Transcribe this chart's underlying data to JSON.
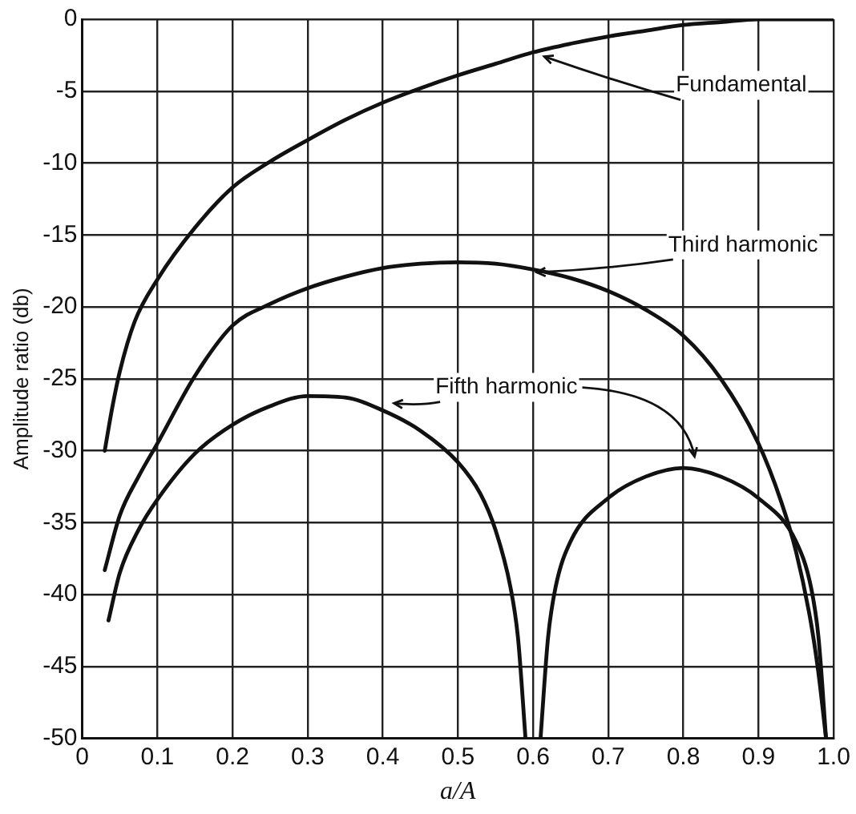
{
  "chart_data": {
    "type": "line",
    "xlabel": "a/A",
    "ylabel": "Amplitude ratio (db)",
    "xlim": [
      0,
      1
    ],
    "xticks": [
      0,
      0.1,
      0.2,
      0.3,
      0.4,
      0.5,
      0.6,
      0.7,
      0.8,
      0.9,
      {
        "value": 1,
        "label": "1.0"
      }
    ],
    "ylim": [
      -50,
      0
    ],
    "yticks": [
      -50,
      -45,
      -40,
      -35,
      -30,
      -25,
      -20,
      -15,
      -10,
      -5,
      0
    ],
    "grid": true,
    "legend": false,
    "marker": "none",
    "line_style": "solid",
    "series": [
      {
        "name": "Fundamental",
        "color": "#111111",
        "x": [
          0.03,
          0.04,
          0.05,
          0.07,
          0.1,
          0.15,
          0.2,
          0.25,
          0.3,
          0.35,
          0.4,
          0.45,
          0.5,
          0.55,
          0.6,
          0.65,
          0.7,
          0.75,
          0.8,
          0.85,
          0.9,
          1.0
        ],
        "values": [
          -30,
          -27,
          -24.5,
          -21,
          -18.1,
          -14.5,
          -11.7,
          -9.9,
          -8.4,
          -7,
          -5.8,
          -4.8,
          -3.9,
          -3.1,
          -2.3,
          -1.7,
          -1.2,
          -0.8,
          -0.4,
          -0.2,
          0,
          0
        ]
      },
      {
        "name": "Third harmonic",
        "color": "#111111",
        "x": [
          0.03,
          0.05,
          0.075,
          0.1,
          0.15,
          0.2,
          0.25,
          0.3,
          0.35,
          0.4,
          0.45,
          0.5,
          0.55,
          0.6,
          0.65,
          0.7,
          0.75,
          0.8,
          0.85,
          0.9,
          0.93,
          0.95,
          0.97,
          0.98,
          0.99
        ],
        "values": [
          -38.3,
          -34.5,
          -31.8,
          -29.5,
          -24.8,
          -21.3,
          -19.8,
          -18.7,
          -17.9,
          -17.3,
          -17,
          -16.9,
          -17,
          -17.4,
          -18,
          -18.9,
          -20.2,
          -22,
          -25,
          -29.5,
          -33.5,
          -37,
          -42,
          -45.5,
          -50
        ]
      },
      {
        "name": "Fifth harmonic",
        "color": "#111111",
        "x": [
          0.035,
          0.05,
          0.075,
          0.1,
          0.15,
          0.2,
          0.25,
          0.3,
          0.35,
          0.4,
          0.45,
          0.5,
          0.53,
          0.55,
          0.57,
          0.58,
          0.59,
          null,
          0.61,
          0.62,
          0.63,
          0.65,
          0.7,
          0.75,
          0.8,
          0.85,
          0.9,
          0.95,
          0.97,
          0.98,
          0.99
        ],
        "values": [
          -41.8,
          -38.5,
          -35.5,
          -33.4,
          -30.2,
          -28.2,
          -26.9,
          -26.2,
          -26.3,
          -27.2,
          -28.6,
          -30.8,
          -33,
          -35.5,
          -39.5,
          -43,
          -50,
          null,
          -50,
          -43,
          -39.5,
          -36.3,
          -33.3,
          -31.8,
          -31.2,
          -31.8,
          -33.3,
          -36.3,
          -39.5,
          -43,
          -50
        ]
      }
    ]
  }
}
